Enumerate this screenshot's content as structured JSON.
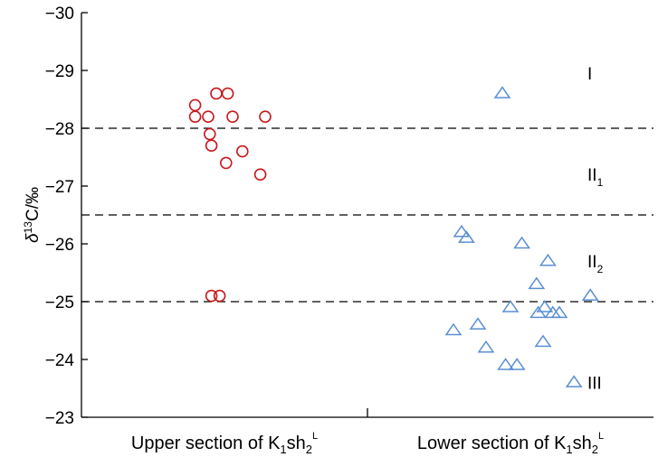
{
  "chart_data": {
    "type": "scatter",
    "title": "",
    "xlabel": "",
    "ylabel": "δ13C/‰",
    "ylabel_parts": {
      "delta": "δ",
      "superscript": "13",
      "rest": "C/‰"
    },
    "y_axis_inverted": true,
    "ylim": [
      -23,
      -30
    ],
    "yticks": [
      -30,
      -29,
      -28,
      -27,
      -26,
      -25,
      -24,
      -23
    ],
    "categories": [
      {
        "text": "Upper section of K",
        "sub": "1",
        "mid": "sh",
        "sub2": "2",
        "sup": "L"
      },
      {
        "text": "Lower section of K",
        "sub": "1",
        "mid": "sh",
        "sub2": "2",
        "sup": "L"
      }
    ],
    "grid": false,
    "dashed_lines_y": [
      -28,
      -26.5,
      -25
    ],
    "zone_labels": [
      {
        "roman": "I",
        "sub": "",
        "y": -28.95
      },
      {
        "roman": "II",
        "sub": "1",
        "y": -27.2
      },
      {
        "roman": "II",
        "sub": "2",
        "y": -25.7
      },
      {
        "roman": "III",
        "sub": "",
        "y": -23.6
      }
    ],
    "colors": {
      "upper": "#c8191e",
      "lower": "#5b8fd2"
    },
    "series": [
      {
        "marker": "circle",
        "category_index": 0,
        "points": [
          {
            "x": -0.18,
            "y": -28.4
          },
          {
            "x": -0.05,
            "y": -28.6
          },
          {
            "x": 0.02,
            "y": -28.6
          },
          {
            "x": -0.18,
            "y": -28.2
          },
          {
            "x": -0.1,
            "y": -28.2
          },
          {
            "x": 0.05,
            "y": -28.2
          },
          {
            "x": 0.25,
            "y": -28.2
          },
          {
            "x": -0.09,
            "y": -27.9
          },
          {
            "x": -0.08,
            "y": -27.7
          },
          {
            "x": 0.11,
            "y": -27.6
          },
          {
            "x": 0.01,
            "y": -27.4
          },
          {
            "x": 0.22,
            "y": -27.2
          },
          {
            "x": -0.08,
            "y": -25.1
          },
          {
            "x": -0.03,
            "y": -25.1
          }
        ]
      },
      {
        "marker": "triangle",
        "category_index": 1,
        "points": [
          {
            "x": -0.05,
            "y": -28.6
          },
          {
            "x": -0.3,
            "y": -26.2
          },
          {
            "x": -0.27,
            "y": -26.1
          },
          {
            "x": 0.07,
            "y": -26.0
          },
          {
            "x": 0.23,
            "y": -25.7
          },
          {
            "x": 0.16,
            "y": -25.3
          },
          {
            "x": 0.49,
            "y": -25.1
          },
          {
            "x": 0.0,
            "y": -24.9
          },
          {
            "x": 0.17,
            "y": -24.8
          },
          {
            "x": 0.21,
            "y": -24.9
          },
          {
            "x": 0.26,
            "y": -24.8
          },
          {
            "x": 0.3,
            "y": -24.8
          },
          {
            "x": -0.2,
            "y": -24.6
          },
          {
            "x": -0.35,
            "y": -24.5
          },
          {
            "x": 0.2,
            "y": -24.3
          },
          {
            "x": -0.15,
            "y": -24.2
          },
          {
            "x": -0.03,
            "y": -23.9
          },
          {
            "x": 0.04,
            "y": -23.9
          },
          {
            "x": 0.39,
            "y": -23.6
          }
        ]
      }
    ]
  }
}
